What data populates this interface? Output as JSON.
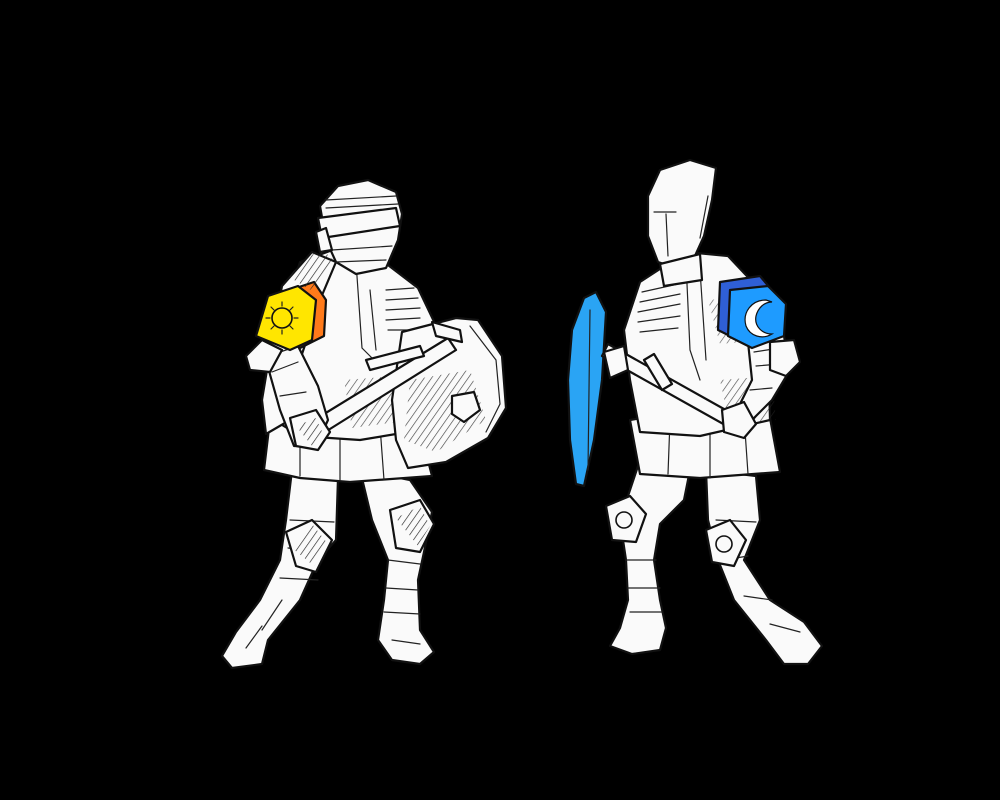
{
  "scene": {
    "background": "#000000",
    "armor_fill": "#fafafa",
    "ink": "#111111"
  },
  "knight_left": {
    "crest": "sun-emblem",
    "crest_colors": {
      "sun": "#ffe600",
      "outer": "#ff7a1a"
    },
    "weapon": "sword",
    "shield": "kite-shield-white"
  },
  "knight_right": {
    "crest": "crescent-moon-emblem",
    "crest_colors": {
      "moon": "#1e9bff",
      "outer": "#2f5fd6"
    },
    "weapon": "sword",
    "shield": "kite-shield-blue",
    "shield_color": "#2aa4f4"
  }
}
